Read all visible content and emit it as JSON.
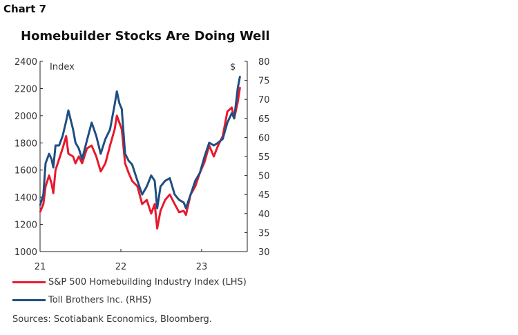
{
  "header": {
    "label": "Chart 7"
  },
  "chart_data": {
    "type": "line",
    "title": "Homebuilder Stocks Are Doing Well",
    "left_axis": {
      "label": "Index",
      "ylim": [
        1000,
        2400
      ],
      "ticks": [
        "1000",
        "1200",
        "1400",
        "1600",
        "1800",
        "2000",
        "2200",
        "2400"
      ]
    },
    "right_axis": {
      "label": "$",
      "ylim": [
        30,
        80
      ],
      "ticks": [
        "30",
        "35",
        "40",
        "45",
        "50",
        "55",
        "60",
        "65",
        "70",
        "75",
        "80"
      ]
    },
    "x_axis": {
      "xlim": [
        "2021-01-01",
        "2023-07-15"
      ],
      "tick_dates": [
        "2021-01-01",
        "2022-01-01",
        "2023-01-01"
      ],
      "tick_labels": [
        "21",
        "22",
        "23"
      ]
    },
    "grid": false,
    "legend_placement": "bottom",
    "dates": [
      "2021-01-01",
      "2021-01-16",
      "2021-01-26",
      "2021-02-11",
      "2021-02-22",
      "2021-03-02",
      "2021-03-12",
      "2021-03-28",
      "2021-04-13",
      "2021-04-29",
      "2021-05-09",
      "2021-05-30",
      "2021-06-10",
      "2021-06-25",
      "2021-07-10",
      "2021-08-01",
      "2021-08-22",
      "2021-09-12",
      "2021-10-02",
      "2021-10-23",
      "2021-11-13",
      "2021-12-04",
      "2021-12-14",
      "2021-12-25",
      "2022-01-05",
      "2022-01-20",
      "2022-02-05",
      "2022-02-21",
      "2022-03-17",
      "2022-04-07",
      "2022-04-28",
      "2022-05-18",
      "2022-06-03",
      "2022-06-14",
      "2022-06-29",
      "2022-07-20",
      "2022-08-10",
      "2022-09-01",
      "2022-09-21",
      "2022-10-12",
      "2022-10-22",
      "2022-11-12",
      "2022-12-03",
      "2022-12-24",
      "2023-01-14",
      "2023-02-04",
      "2023-02-25",
      "2023-03-16",
      "2023-04-06",
      "2023-04-27",
      "2023-05-17",
      "2023-05-28",
      "2023-06-13",
      "2023-06-23"
    ],
    "series": [
      {
        "name": "S&P 500 Homebuilding Industry Index (LHS)",
        "axis": "left",
        "color": "#e8192c",
        "values": [
          1290,
          1350,
          1480,
          1560,
          1500,
          1430,
          1600,
          1680,
          1760,
          1850,
          1720,
          1700,
          1650,
          1700,
          1650,
          1760,
          1780,
          1700,
          1590,
          1650,
          1780,
          1900,
          2000,
          1950,
          1900,
          1650,
          1580,
          1520,
          1480,
          1350,
          1380,
          1280,
          1350,
          1170,
          1300,
          1380,
          1420,
          1350,
          1290,
          1300,
          1270,
          1420,
          1480,
          1580,
          1660,
          1780,
          1700,
          1780,
          1850,
          2030,
          2060,
          1980,
          2100,
          2210
        ]
      },
      {
        "name": "Toll Brothers Inc. (RHS)",
        "axis": "right",
        "color": "#1f4e82",
        "values": [
          42.1,
          45.0,
          53.2,
          55.7,
          54.3,
          52.1,
          57.9,
          57.9,
          60.4,
          64.3,
          67.1,
          62.1,
          58.6,
          57.1,
          54.3,
          59.3,
          63.9,
          60.4,
          55.7,
          59.6,
          62.1,
          68.6,
          72.1,
          69.0,
          67.5,
          55.7,
          53.9,
          52.9,
          48.6,
          45.0,
          47.1,
          50.0,
          48.6,
          41.4,
          47.1,
          48.6,
          49.3,
          45.0,
          43.6,
          42.9,
          41.4,
          45.0,
          48.6,
          50.7,
          55.0,
          58.6,
          57.9,
          58.6,
          59.6,
          63.9,
          66.4,
          65.0,
          72.9,
          76.1
        ]
      }
    ]
  },
  "sources": "Sources: Scotiabank Economics, Bloomberg."
}
